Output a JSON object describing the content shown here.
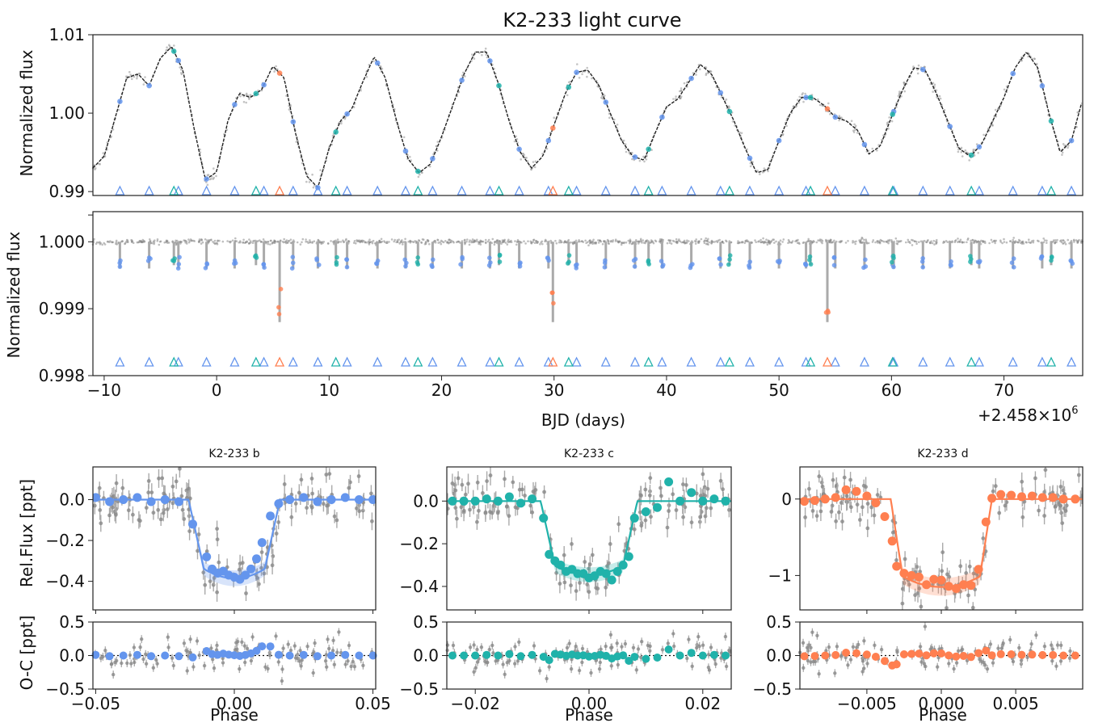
{
  "figure": {
    "suptitle": "K2-233 light curve",
    "offset_label": "+2.458×10",
    "offset_exponent": "6"
  },
  "colors": {
    "b": "#6495ed",
    "c": "#20b2aa",
    "d": "#ff7f50",
    "data": "#888888",
    "model": "#222222"
  },
  "chart_data": [
    {
      "id": "raw",
      "type": "line",
      "title": "K2-233 light curve",
      "ylabel": "Normalized flux",
      "xlim": [
        -11,
        77
      ],
      "ylim": [
        0.9895,
        1.01
      ],
      "yticks": [
        {
          "v": 0.99,
          "label": "0.99"
        },
        {
          "v": 1.0,
          "label": "1.00"
        },
        {
          "v": 1.01,
          "label": "1.01"
        }
      ],
      "grid": false,
      "series": [
        {
          "kind": "model-curve",
          "x": [
            -11,
            -10,
            -9,
            -8,
            -7,
            -6,
            -5,
            -4,
            -3,
            -2,
            -1,
            0,
            1,
            2,
            3,
            4,
            5,
            6,
            7,
            8,
            9,
            10,
            11,
            12,
            13,
            14,
            15,
            16,
            17,
            18,
            19,
            20,
            21,
            22,
            23,
            24,
            25,
            26,
            27,
            28,
            29,
            30,
            31,
            32,
            33,
            34,
            35,
            36,
            37,
            38,
            39,
            40,
            41,
            42,
            43,
            44,
            45,
            46,
            47,
            48,
            49,
            50,
            51,
            52,
            53,
            54,
            55,
            56,
            57,
            58,
            59,
            60,
            61,
            62,
            63,
            64,
            65,
            66,
            67,
            68,
            69,
            70,
            71,
            72,
            73,
            74,
            75,
            76,
            77
          ],
          "y": [
            0.993,
            0.9945,
            0.9995,
            1.0045,
            1.005,
            1.0035,
            1.007,
            1.0085,
            1.0055,
            0.998,
            0.9915,
            0.9925,
            0.999,
            1.0025,
            1.002,
            1.003,
            1.006,
            1.0045,
            0.9975,
            0.992,
            0.9905,
            0.9955,
            0.999,
            1.0005,
            1.004,
            1.0072,
            1.0045,
            0.999,
            0.9942,
            0.9924,
            0.9935,
            0.997,
            1.001,
            1.005,
            1.0078,
            1.0078,
            1.004,
            0.999,
            0.995,
            0.993,
            0.9945,
            0.9985,
            1.0025,
            1.0052,
            1.0055,
            1.0035,
            1.0,
            0.9965,
            0.9945,
            0.994,
            0.9975,
            1.0008,
            1.0018,
            1.004,
            1.0062,
            1.005,
            1.002,
            0.999,
            0.9955,
            0.9924,
            0.9928,
            0.9965,
            1.0,
            1.002,
            1.002,
            1.001,
            0.9995,
            0.999,
            0.9978,
            0.9948,
            0.9958,
            0.9995,
            1.003,
            1.0058,
            1.0055,
            1.0025,
            0.999,
            0.9955,
            0.9945,
            0.996,
            0.999,
            1.002,
            1.0058,
            1.0078,
            1.0058,
            1.0,
            0.995,
            0.9965,
            1.0018
          ]
        },
        {
          "name": "K2-233 b",
          "kind": "transit-markers",
          "x": [
            -8.6,
            -6,
            -3.4,
            -0.9,
            1.6,
            4.2,
            6.8,
            9.0,
            11.6,
            14.3,
            16.8,
            19.2,
            21.8,
            24.3,
            26.9,
            29.5,
            32.0,
            34.6,
            37.2,
            39.6,
            42.2,
            44.8,
            47.4,
            50.0,
            52.4,
            55.0,
            57.6,
            60.2,
            62.8,
            65.2,
            67.8,
            70.8,
            73.4,
            76.0
          ]
        },
        {
          "name": "K2-233 c",
          "kind": "transit-markers",
          "x": [
            -3.8,
            3.5,
            10.6,
            17.9,
            25.1,
            31.3,
            38.4,
            45.6,
            52.8,
            60.1,
            67.1,
            74.2
          ]
        },
        {
          "name": "K2-233 d",
          "kind": "transit-markers",
          "x": [
            5.6,
            29.9,
            54.3
          ]
        }
      ]
    },
    {
      "id": "detrended",
      "type": "scatter",
      "xlabel": "BJD (days)",
      "ylabel": "Normalized flux",
      "xlim": [
        -11,
        77
      ],
      "ylim": [
        0.998,
        1.00045
      ],
      "xticks": [
        {
          "v": -10,
          "label": "−10"
        },
        {
          "v": 0,
          "label": "0"
        },
        {
          "v": 10,
          "label": "10"
        },
        {
          "v": 20,
          "label": "20"
        },
        {
          "v": 30,
          "label": "30"
        },
        {
          "v": 40,
          "label": "40"
        },
        {
          "v": 50,
          "label": "50"
        },
        {
          "v": 60,
          "label": "60"
        },
        {
          "v": 70,
          "label": "70"
        }
      ],
      "yticks": [
        {
          "v": 0.998,
          "label": "0.998"
        },
        {
          "v": 0.999,
          "label": "0.999"
        },
        {
          "v": 1.0,
          "label": "1.000"
        }
      ],
      "grid": false,
      "series": [
        {
          "name": "K2-233 b",
          "depth": 0.0004
        },
        {
          "name": "K2-233 c",
          "depth": 0.00035
        },
        {
          "name": "K2-233 d",
          "depth": 0.0012
        }
      ]
    },
    {
      "id": "b",
      "type": "scatter",
      "title": "K2-233 b",
      "ylabel": "Rel.Flux [ppt]",
      "xlabel": "Phase",
      "xlim": [
        -0.051,
        0.051
      ],
      "ylim": [
        -0.54,
        0.16
      ],
      "xticks": [
        {
          "v": -0.05,
          "label": "−0.05"
        },
        {
          "v": 0.0,
          "label": "0.00"
        },
        {
          "v": 0.05,
          "label": "0.05"
        }
      ],
      "yticks": [
        {
          "v": 0.0,
          "label": "0.0"
        },
        {
          "v": -0.2,
          "label": "−0.2"
        },
        {
          "v": -0.4,
          "label": "−0.4"
        }
      ],
      "depth": -0.385,
      "t14": 0.0165,
      "t23": 0.011,
      "binned": {
        "x": [
          -0.05,
          -0.045,
          -0.04,
          -0.035,
          -0.03,
          -0.025,
          -0.02,
          -0.015,
          -0.01,
          -0.008,
          -0.006,
          -0.004,
          -0.002,
          0.0,
          0.002,
          0.004,
          0.006,
          0.008,
          0.01,
          0.013,
          0.016,
          0.02,
          0.025,
          0.03,
          0.035,
          0.04,
          0.045,
          0.05
        ],
        "y": [
          0.01,
          -0.01,
          0.0,
          0.01,
          -0.01,
          0.0,
          -0.01,
          -0.12,
          -0.28,
          -0.34,
          -0.36,
          -0.35,
          -0.37,
          -0.38,
          -0.39,
          -0.37,
          -0.34,
          -0.29,
          -0.21,
          -0.08,
          -0.02,
          0.0,
          0.01,
          -0.01,
          0.0,
          0.01,
          0.0,
          0.0
        ]
      },
      "residuals": {
        "ylim": [
          -0.5,
          0.5
        ],
        "yticks": [
          {
            "v": 0.5,
            "label": "0.5"
          },
          {
            "v": 0.0,
            "label": "0.0"
          },
          {
            "v": -0.5,
            "label": "−0.5"
          }
        ]
      }
    },
    {
      "id": "c",
      "type": "scatter",
      "title": "K2-233 c",
      "xlabel": "Phase",
      "xlim": [
        -0.025,
        0.025
      ],
      "ylim": [
        -0.51,
        0.16
      ],
      "xticks": [
        {
          "v": -0.02,
          "label": "−0.02"
        },
        {
          "v": 0.0,
          "label": "0.00"
        },
        {
          "v": 0.02,
          "label": "0.02"
        }
      ],
      "yticks": [
        {
          "v": 0.0,
          "label": "0.0"
        },
        {
          "v": -0.2,
          "label": "−0.2"
        },
        {
          "v": -0.4,
          "label": "−0.4"
        }
      ],
      "depth": -0.345,
      "t14": 0.0085,
      "t23": 0.006,
      "binned": {
        "x": [
          -0.024,
          -0.022,
          -0.02,
          -0.018,
          -0.016,
          -0.014,
          -0.012,
          -0.01,
          -0.008,
          -0.007,
          -0.006,
          -0.005,
          -0.004,
          -0.003,
          -0.002,
          -0.001,
          0.0,
          0.001,
          0.002,
          0.003,
          0.004,
          0.005,
          0.006,
          0.007,
          0.008,
          0.01,
          0.012,
          0.014,
          0.016,
          0.018,
          0.02,
          0.022,
          0.024
        ],
        "y": [
          0.0,
          0.0,
          0.0,
          0.01,
          0.0,
          0.02,
          -0.01,
          0.01,
          -0.08,
          -0.25,
          -0.28,
          -0.3,
          -0.33,
          -0.32,
          -0.34,
          -0.34,
          -0.36,
          -0.35,
          -0.33,
          -0.34,
          -0.37,
          -0.33,
          -0.3,
          -0.26,
          -0.08,
          -0.05,
          -0.03,
          0.09,
          0.0,
          0.04,
          0.0,
          0.01,
          0.0
        ]
      },
      "residuals": {
        "ylim": [
          -0.5,
          0.5
        ],
        "yticks": [
          {
            "v": 0.5,
            "label": "0.5"
          },
          {
            "v": 0.0,
            "label": "0.0"
          },
          {
            "v": -0.5,
            "label": "−0.5"
          }
        ]
      }
    },
    {
      "id": "d",
      "type": "scatter",
      "title": "K2-233 d",
      "xlabel": "Phase",
      "xlim": [
        -0.0095,
        0.0095
      ],
      "ylim": [
        -1.45,
        0.42
      ],
      "xticks": [
        {
          "v": -0.005,
          "label": "−0.005"
        },
        {
          "v": 0.0,
          "label": "0.000"
        },
        {
          "v": 0.005,
          "label": "0.005"
        }
      ],
      "yticks": [
        {
          "v": 0.0,
          "label": "0"
        },
        {
          "v": -1.0,
          "label": "−1"
        }
      ],
      "depth": -1.15,
      "t14": 0.0034,
      "t23": 0.0026,
      "binned": {
        "x": [
          -0.0092,
          -0.0085,
          -0.0078,
          -0.0071,
          -0.0064,
          -0.0057,
          -0.005,
          -0.0044,
          -0.0038,
          -0.0033,
          -0.003,
          -0.0025,
          -0.002,
          -0.0015,
          -0.001,
          -0.0005,
          0.0,
          0.0005,
          0.001,
          0.0015,
          0.002,
          0.0025,
          0.003,
          0.0034,
          0.004,
          0.0047,
          0.0054,
          0.0061,
          0.0068,
          0.0075,
          0.0082,
          0.009
        ],
        "y": [
          -0.03,
          -0.02,
          0.0,
          0.02,
          0.12,
          0.1,
          0.04,
          -0.05,
          -0.23,
          -0.55,
          -0.88,
          -0.97,
          -1.0,
          -1.02,
          -1.12,
          -1.05,
          -1.06,
          -1.14,
          -1.17,
          -1.12,
          -1.13,
          -0.92,
          -0.3,
          0.01,
          0.06,
          0.05,
          0.03,
          0.04,
          0.02,
          0.02,
          0.0,
          0.0
        ]
      },
      "residuals": {
        "ylim": [
          -0.5,
          0.5
        ],
        "yticks": [
          {
            "v": 0.5,
            "label": "0.5"
          },
          {
            "v": 0.0,
            "label": "0.0"
          },
          {
            "v": -0.5,
            "label": "−0.5"
          }
        ]
      }
    }
  ],
  "labels": {
    "res_ylabel": "O-C [ppt]"
  }
}
